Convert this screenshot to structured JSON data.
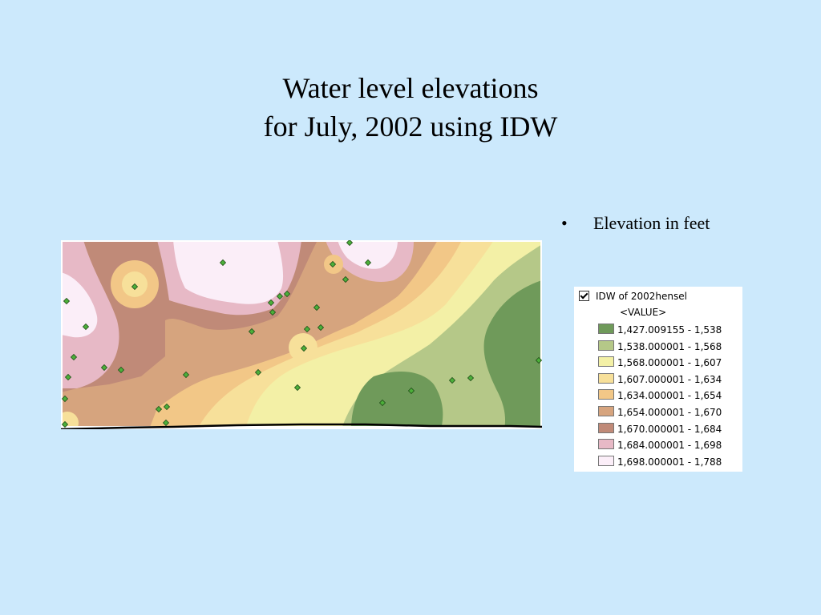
{
  "title": {
    "line1": "Water level elevations",
    "line2": "for July, 2002 using IDW"
  },
  "bullets": [
    {
      "text": "Elevation in feet"
    }
  ],
  "legend": {
    "layer_name": "IDW of 2002hensel",
    "checked": true,
    "field": "<VALUE>",
    "classes": [
      {
        "label": "1,427.009155 - 1,538",
        "color": "#6f9a5a"
      },
      {
        "label": "1,538.000001 - 1,568",
        "color": "#b5c888"
      },
      {
        "label": "1,568.000001 - 1,607",
        "color": "#f3f0a6"
      },
      {
        "label": "1,607.000001 - 1,634",
        "color": "#f7e09a"
      },
      {
        "label": "1,634.000001 - 1,654",
        "color": "#f2c787"
      },
      {
        "label": "1,654.000001 - 1,670",
        "color": "#d6a47e"
      },
      {
        "label": "1,670.000001 - 1,684",
        "color": "#c08a78"
      },
      {
        "label": "1,684.000001 - 1,698",
        "color": "#e7b9c6"
      },
      {
        "label": "1,698.000001 - 1,788",
        "color": "#fbeef8"
      }
    ]
  },
  "map": {
    "well_color": "#4caf3a"
  }
}
